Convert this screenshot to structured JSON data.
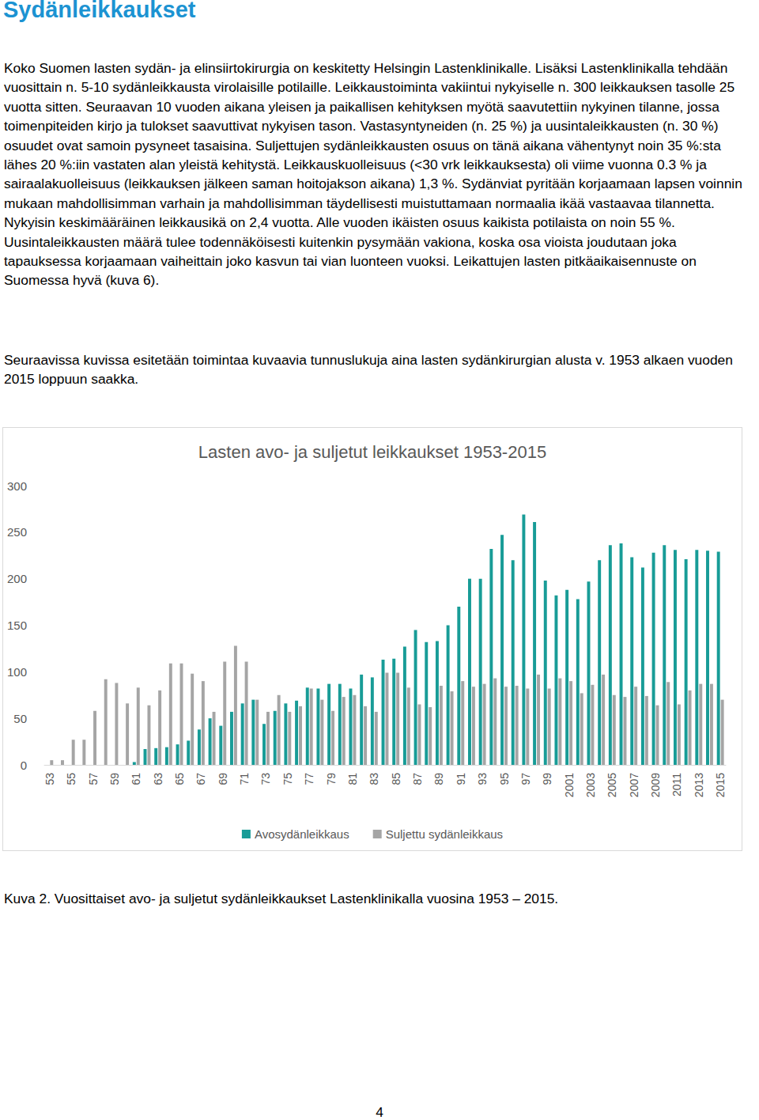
{
  "heading": "Sydänleikkaukset",
  "paragraphs": [
    "Koko Suomen lasten sydän- ja elinsiirtokirurgia on keskitetty Helsingin Lastenklinikalle. Lisäksi Lastenklinikalla tehdään vuosittain n. 5-10 sydänleikkausta virolaisille potilaille. Leikkaustoiminta vakiintui nykyiselle n. 300 leikkauksen tasolle 25 vuotta sitten. Seuraavan 10 vuoden aikana yleisen ja paikallisen kehityksen myötä saavutettiin nykyinen tilanne, jossa toimenpiteiden kirjo ja tulokset saavuttivat nykyisen tason. Vastasyntyneiden (n. 25 %) ja uusintaleikkausten (n. 30 %) osuudet ovat samoin pysyneet tasaisina. Suljettujen sydänleikkausten osuus on tänä aikana vähentynyt noin 35 %:sta lähes 20 %:iin vastaten alan yleistä kehitystä. Leikkauskuolleisuus (<30 vrk leikkauksesta) oli viime vuonna 0.3 % ja sairaalakuolleisuus (leikkauksen jälkeen saman hoitojakson aikana) 1,3 %. Sydänviat pyritään korjaamaan lapsen voinnin mukaan mahdollisimman varhain ja mahdollisimman täydellisesti muistuttamaan normaalia ikää vastaavaa tilannetta. Nykyisin keskimääräinen leikkausikä on 2,4 vuotta. Alle vuoden ikäisten osuus kaikista potilaista on noin 55 %. Uusintaleikkausten määrä tulee todennäköisesti kuitenkin pysymään vakiona, koska osa vioista joudutaan joka tapauksessa korjaamaan vaiheittain joko kasvun tai vian luonteen vuoksi. Leikattujen lasten pitkäaikaisennuste on Suomessa hyvä (kuva 6).",
    "Seuraavissa kuvissa esitetään toimintaa kuvaavia tunnuslukuja aina lasten sydänkirurgian alusta v. 1953 alkaen vuoden 2015 loppuun saakka."
  ],
  "chart_data": {
    "type": "bar",
    "title": "Lasten avo- ja suljetut leikkaukset 1953-2015",
    "categories": [
      "53",
      null,
      "55",
      null,
      "57",
      null,
      "59",
      null,
      "61",
      null,
      "63",
      null,
      "65",
      null,
      "67",
      null,
      "69",
      null,
      "71",
      null,
      "73",
      null,
      "75",
      null,
      "77",
      null,
      "79",
      null,
      "81",
      null,
      "83",
      null,
      "85",
      null,
      "87",
      null,
      "89",
      null,
      "91",
      null,
      "93",
      null,
      "95",
      null,
      "97",
      null,
      "99",
      null,
      "2001",
      null,
      "2003",
      null,
      "2005",
      null,
      "2007",
      null,
      "2009",
      null,
      "2011",
      null,
      "2013",
      null,
      "2015"
    ],
    "series": [
      {
        "name": "Avosydänleikkaus",
        "color": "#189c97",
        "values": [
          0,
          0,
          0,
          0,
          0,
          0,
          0,
          0,
          3,
          17,
          18,
          19,
          22,
          26,
          38,
          50,
          42,
          57,
          66,
          70,
          44,
          58,
          66,
          69,
          83,
          82,
          87,
          87,
          82,
          97,
          94,
          113,
          114,
          127,
          145,
          132,
          133,
          150,
          170,
          200,
          200,
          232,
          247,
          220,
          269,
          261,
          198,
          182,
          188,
          178,
          197,
          220,
          236,
          238,
          223,
          212,
          228,
          236,
          231,
          221,
          231,
          230,
          229
        ]
      },
      {
        "name": "Suljettu sydänleikkaus",
        "color": "#a5a5a5",
        "values": [
          5,
          5,
          27,
          27,
          58,
          92,
          88,
          66,
          83,
          64,
          80,
          109,
          109,
          98,
          90,
          57,
          111,
          128,
          111,
          70,
          57,
          75,
          57,
          63,
          82,
          70,
          58,
          73,
          75,
          63,
          57,
          99,
          99,
          83,
          65,
          62,
          85,
          79,
          90,
          84,
          87,
          93,
          84,
          85,
          82,
          97,
          82,
          93,
          90,
          77,
          86,
          97,
          75,
          73,
          84,
          74,
          64,
          89,
          65,
          80,
          87,
          87,
          70
        ]
      }
    ],
    "ylim": [
      0,
      300
    ],
    "yticks": [
      0,
      50,
      100,
      150,
      200,
      250,
      300
    ],
    "grid": false,
    "legend": "bottom"
  },
  "caption": "Kuva 2. Vuosittaiset avo- ja suljetut sydänleikkaukset Lastenklinikalla vuosina 1953 – 2015.",
  "page_number": "4"
}
